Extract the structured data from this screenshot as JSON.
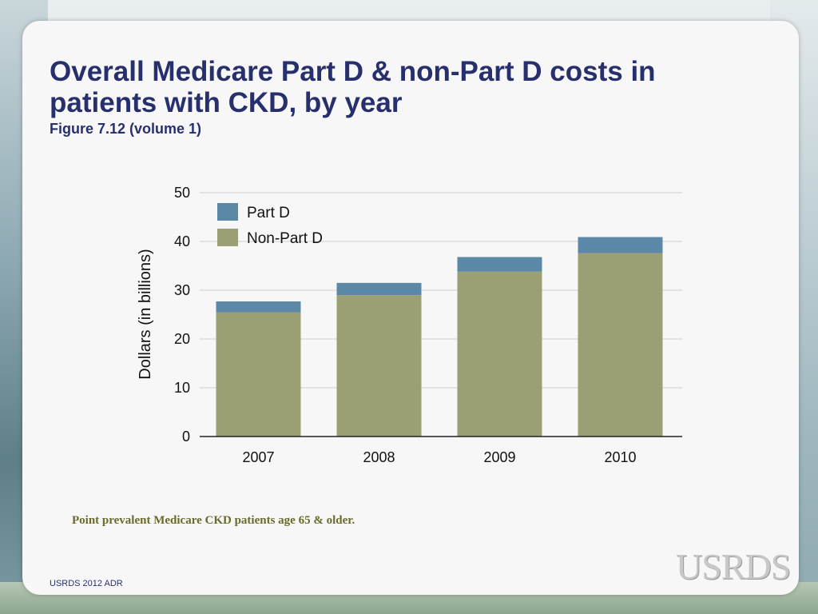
{
  "slide": {
    "title": "Overall Medicare Part D & non-Part D costs in patients with CKD, by year",
    "subtitle": "Figure 7.12 (volume 1)",
    "footnote": "Point prevalent Medicare CKD patients age 65 & older.",
    "source": "USRDS 2012 ADR",
    "logo_text": "USRDS"
  },
  "chart_data": {
    "type": "bar",
    "stacked": true,
    "title": "",
    "xlabel": "",
    "ylabel": "Dollars (in billions)",
    "ylim": [
      0,
      50
    ],
    "yticks": [
      0,
      10,
      20,
      30,
      40,
      50
    ],
    "grid": true,
    "legend_position": "top-left",
    "categories": [
      "2007",
      "2008",
      "2009",
      "2010"
    ],
    "series": [
      {
        "name": "Non-Part D",
        "color": "#9c9f74",
        "values": [
          25.5,
          29.0,
          33.8,
          37.6
        ]
      },
      {
        "name": "Part D",
        "color": "#5b88a6",
        "values": [
          2.2,
          2.5,
          3.0,
          3.3
        ]
      }
    ]
  }
}
